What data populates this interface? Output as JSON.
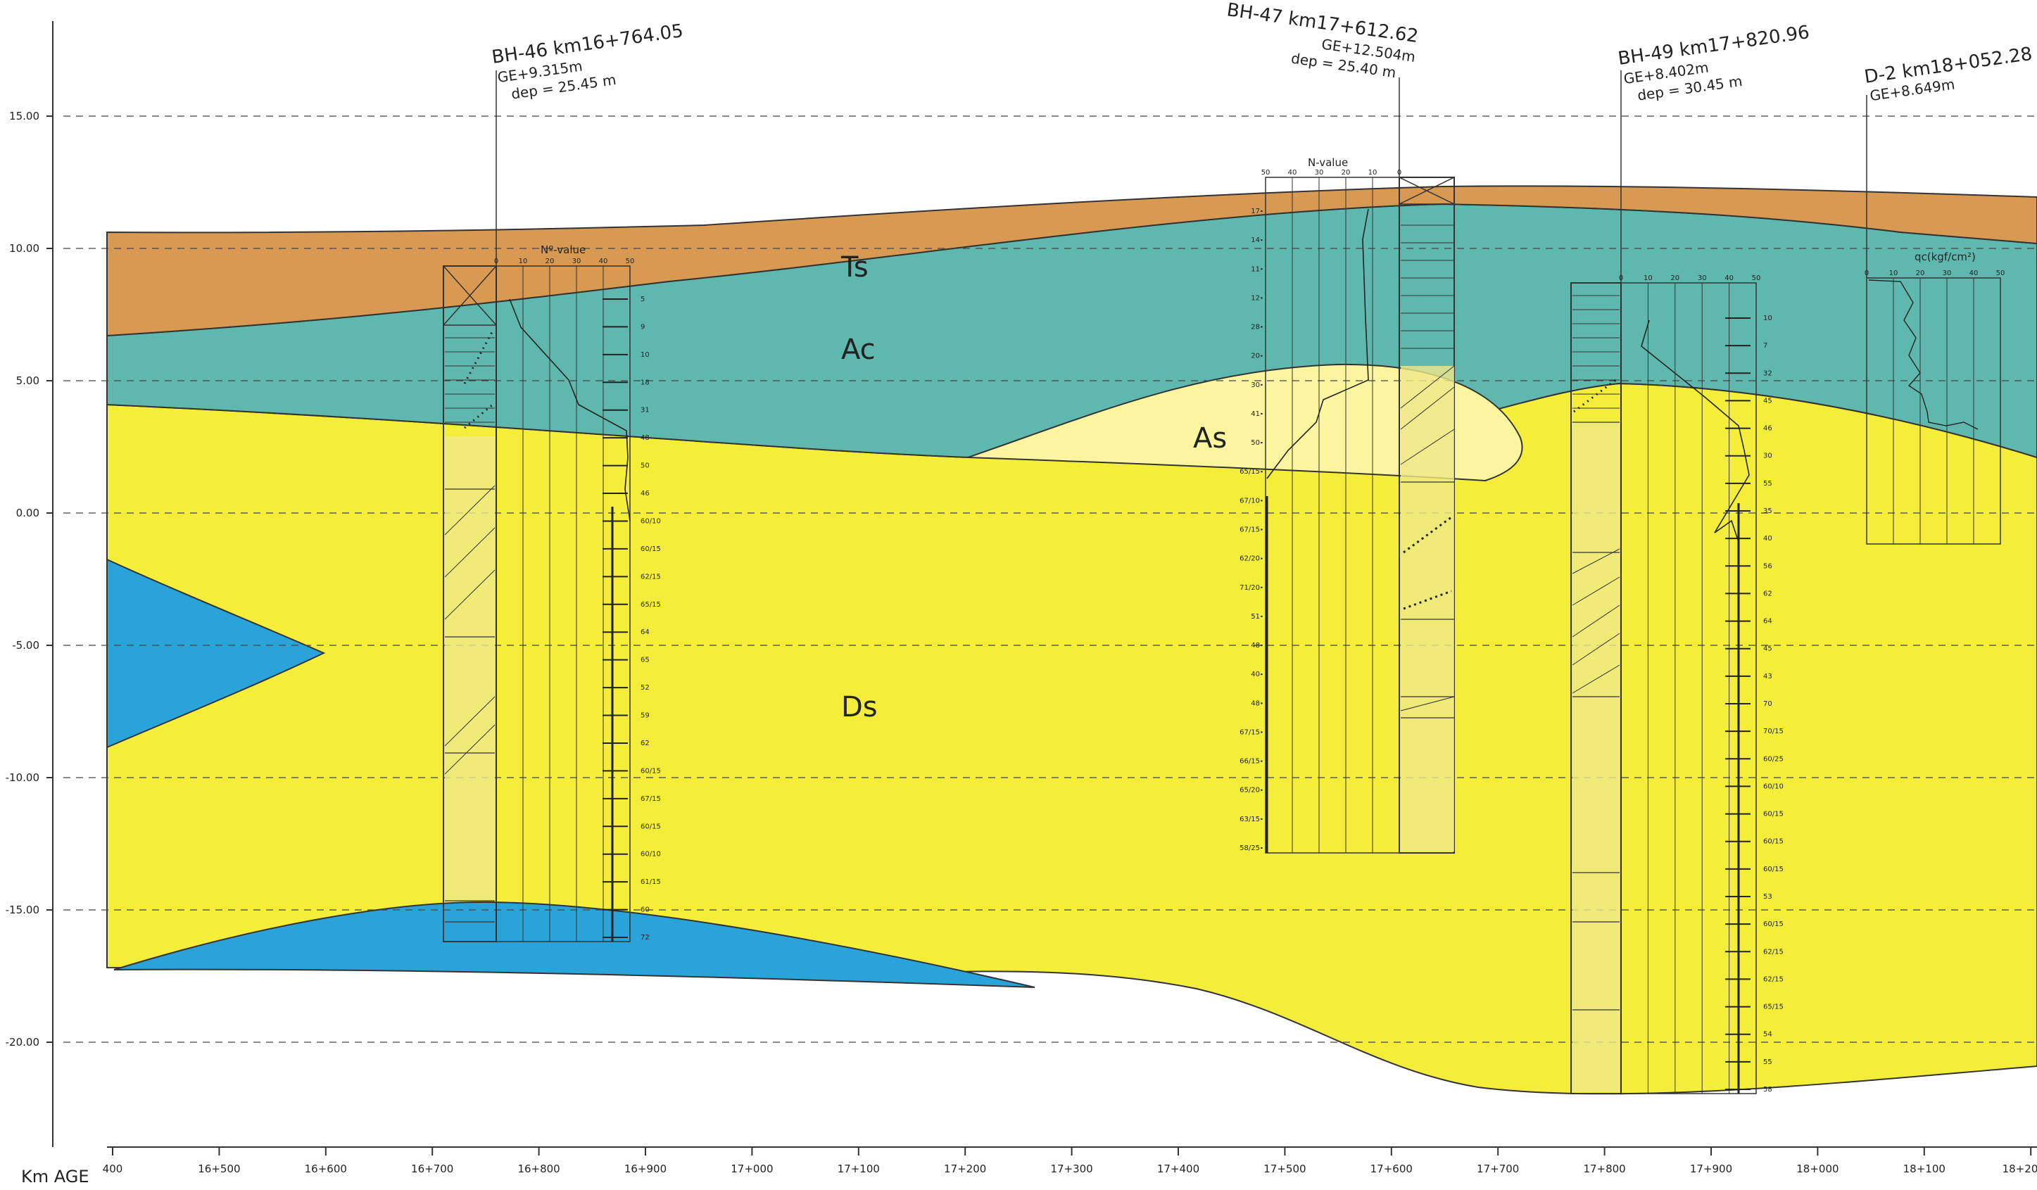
{
  "axis": {
    "y_title": "",
    "x_title": "Km AGE",
    "elevations": [
      "15.00",
      "10.00",
      "5.00",
      "0.00",
      "-5.00",
      "-10.00",
      "-15.00",
      "-20.00"
    ],
    "chainages": [
      "400",
      "16+500",
      "16+600",
      "16+700",
      "16+800",
      "16+900",
      "17+000",
      "17+100",
      "17+200",
      "17+300",
      "17+400",
      "17+500",
      "17+600",
      "17+700",
      "17+800",
      "17+900",
      "18+000",
      "18+100",
      "18+20"
    ]
  },
  "layers": [
    {
      "id": "Ts",
      "label": "Ts",
      "color": "#d89a52"
    },
    {
      "id": "Ac",
      "label": "Ac",
      "color": "#5fb8ae"
    },
    {
      "id": "As",
      "label": "As",
      "color": "#fbf5a0"
    },
    {
      "id": "Ds",
      "label": "Ds",
      "color": "#f4ee3a"
    },
    {
      "id": "Dc",
      "label": "",
      "color": "#2aa3d8"
    }
  ],
  "boreholes": [
    {
      "id": "BH-46",
      "title": "BH-46 km16+764.05",
      "ground": "GE+9.315m",
      "depth": "dep = 25.45 m",
      "nvalue_title": "Nº-value",
      "ticks": [
        "0",
        "10",
        "20",
        "30",
        "40",
        "50"
      ],
      "nvalues": [
        "5",
        "9",
        "10",
        "18",
        "31",
        "48",
        "50",
        "46",
        "60/10",
        "60/15",
        "62/15",
        "65/15",
        "64",
        "65",
        "52",
        "59",
        "62",
        "60/15",
        "67/15",
        "60/15",
        "60/10",
        "61/15",
        "60",
        "72"
      ]
    },
    {
      "id": "BH-47",
      "title": "BH-47 km17+612.62",
      "ground": "GE+12.504m",
      "depth": "dep = 25.40 m",
      "nvalue_title": "N-value",
      "ticks": [
        "50",
        "40",
        "30",
        "20",
        "10",
        "0"
      ],
      "nvalues": [
        "17",
        "14",
        "11",
        "12",
        "28",
        "20",
        "30",
        "41",
        "50",
        "65/15",
        "67/10",
        "67/15",
        "62/20",
        "71/20",
        "51",
        "48",
        "40",
        "48",
        "67/15",
        "66/15",
        "65/20",
        "63/15",
        "58/25"
      ]
    },
    {
      "id": "BH-49",
      "title": "BH-49 km17+820.96",
      "ground": "GE+8.402m",
      "depth": "dep = 30.45 m",
      "nvalue_title": "",
      "ticks": [
        "0",
        "10",
        "20",
        "30",
        "40",
        "50"
      ],
      "nvalues": [
        "10",
        "7",
        "32",
        "45",
        "46",
        "30",
        "55",
        "35",
        "40",
        "56",
        "62",
        "64",
        "45",
        "43",
        "70",
        "70/15",
        "60/25",
        "60/10",
        "60/15",
        "60/15",
        "60/15",
        "53",
        "60/15",
        "62/15",
        "62/15",
        "65/15",
        "54",
        "55",
        "58"
      ]
    },
    {
      "id": "D-2",
      "title": "D-2 km18+052.28",
      "ground": "GE+8.649m",
      "depth": "",
      "nvalue_title": "qc(kgf/cm²)",
      "ticks": [
        "0",
        "10",
        "20",
        "30",
        "40",
        "50"
      ],
      "nvalues": []
    }
  ]
}
